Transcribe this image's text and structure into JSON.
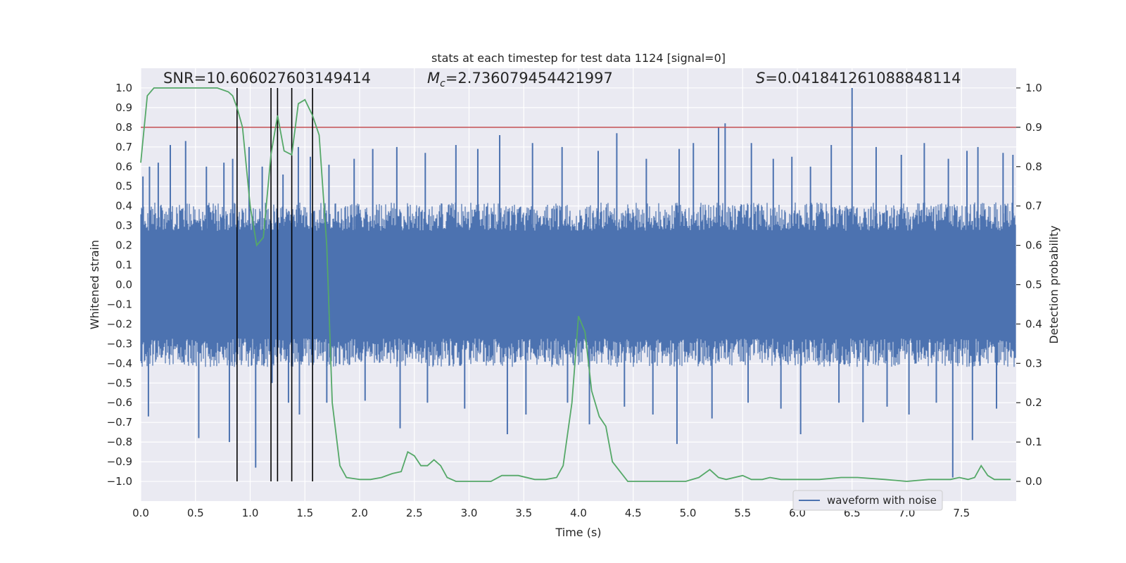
{
  "chart_data": {
    "type": "line",
    "title": "stats at each timestep for test data 1124 [signal=0]",
    "xlabel": "Time (s)",
    "ylabel": "Whitened strain",
    "ylabel_right": "Detection probability",
    "xlim": [
      0.0,
      8.0
    ],
    "ylim": [
      -1.1,
      1.1
    ],
    "ylim_right": [
      -0.05,
      1.05
    ],
    "x_ticks": [
      0.0,
      0.5,
      1.0,
      1.5,
      2.0,
      2.5,
      3.0,
      3.5,
      4.0,
      4.5,
      5.0,
      5.5,
      6.0,
      6.5,
      7.0,
      7.5
    ],
    "x_tick_labels": [
      "0.0",
      "0.5",
      "1.0",
      "1.5",
      "2.0",
      "2.5",
      "3.0",
      "3.5",
      "4.0",
      "4.5",
      "5.0",
      "5.5",
      "6.0",
      "6.5",
      "7.0",
      "7.5"
    ],
    "y_ticks": [
      1.0,
      0.9,
      0.8,
      0.7,
      0.6,
      0.5,
      0.4,
      0.3,
      0.2,
      0.1,
      0.0,
      -0.1,
      -0.2,
      -0.3,
      -0.4,
      -0.5,
      -0.6,
      -0.7,
      -0.8,
      -0.9,
      -1.0
    ],
    "y_tick_labels": [
      "1.0",
      "0.9",
      "0.8",
      "0.7",
      "0.6",
      "0.5",
      "0.4",
      "0.3",
      "0.2",
      "0.1",
      "0.0",
      "−0.1",
      "−0.2",
      "−0.3",
      "−0.4",
      "−0.5",
      "−0.6",
      "−0.7",
      "−0.8",
      "−0.9",
      "−1.0"
    ],
    "y_right_ticks": [
      1.0,
      0.9,
      0.8,
      0.7,
      0.6,
      0.5,
      0.4,
      0.3,
      0.2,
      0.1,
      0.0
    ],
    "y_right_tick_labels": [
      "1.0",
      "0.9",
      "0.8",
      "0.7",
      "0.6",
      "0.5",
      "0.4",
      "0.3",
      "0.2",
      "0.1",
      "0.0"
    ],
    "grid": true,
    "annotations": {
      "snr": "SNR=10.606027603149414",
      "mc_symbol": "M",
      "mc_subscript": "c",
      "mc_value": "=2.736079454421997",
      "s_symbol": "S",
      "s_value": "=0.041841261088848114"
    },
    "threshold": {
      "y": 0.8,
      "color": "#c44e52"
    },
    "vertical_lines": {
      "x": [
        0.88,
        1.19,
        1.25,
        1.38,
        1.57
      ],
      "y_range": [
        -1.0,
        1.0
      ],
      "color": "#000000"
    },
    "waveform": {
      "name": "waveform with noise",
      "color": "#4c72b0",
      "core_amplitude": 0.38,
      "spikes": [
        {
          "x": 0.02,
          "y": 0.55
        },
        {
          "x": 0.08,
          "y": 0.6
        },
        {
          "x": 0.16,
          "y": 0.62
        },
        {
          "x": 0.27,
          "y": 0.71
        },
        {
          "x": 0.41,
          "y": 0.73
        },
        {
          "x": 0.6,
          "y": 0.6
        },
        {
          "x": 0.76,
          "y": 0.62
        },
        {
          "x": 0.84,
          "y": 0.64
        },
        {
          "x": 0.99,
          "y": 0.7
        },
        {
          "x": 1.11,
          "y": 0.6
        },
        {
          "x": 1.3,
          "y": 0.56
        },
        {
          "x": 1.44,
          "y": 0.7
        },
        {
          "x": 1.55,
          "y": 0.65
        },
        {
          "x": 1.72,
          "y": 0.61
        },
        {
          "x": 1.95,
          "y": 0.64
        },
        {
          "x": 2.12,
          "y": 0.69
        },
        {
          "x": 2.34,
          "y": 0.7
        },
        {
          "x": 2.6,
          "y": 0.67
        },
        {
          "x": 2.88,
          "y": 0.71
        },
        {
          "x": 3.08,
          "y": 0.69
        },
        {
          "x": 3.28,
          "y": 0.76
        },
        {
          "x": 3.58,
          "y": 0.72
        },
        {
          "x": 3.85,
          "y": 0.7
        },
        {
          "x": 4.18,
          "y": 0.68
        },
        {
          "x": 4.35,
          "y": 0.77
        },
        {
          "x": 4.62,
          "y": 0.64
        },
        {
          "x": 4.92,
          "y": 0.69
        },
        {
          "x": 5.05,
          "y": 0.72
        },
        {
          "x": 5.28,
          "y": 0.8
        },
        {
          "x": 5.34,
          "y": 0.82
        },
        {
          "x": 5.58,
          "y": 0.72
        },
        {
          "x": 5.78,
          "y": 0.64
        },
        {
          "x": 5.95,
          "y": 0.65
        },
        {
          "x": 6.12,
          "y": 0.6
        },
        {
          "x": 6.31,
          "y": 0.71
        },
        {
          "x": 6.5,
          "y": 1.0
        },
        {
          "x": 6.72,
          "y": 0.7
        },
        {
          "x": 6.95,
          "y": 0.66
        },
        {
          "x": 7.16,
          "y": 0.72
        },
        {
          "x": 7.38,
          "y": 0.64
        },
        {
          "x": 7.55,
          "y": 0.68
        },
        {
          "x": 7.65,
          "y": 0.7
        },
        {
          "x": 7.88,
          "y": 0.67
        },
        {
          "x": 7.97,
          "y": 0.66
        },
        {
          "x": 0.07,
          "y": -0.67
        },
        {
          "x": 0.53,
          "y": -0.78
        },
        {
          "x": 0.81,
          "y": -0.8
        },
        {
          "x": 1.05,
          "y": -0.93
        },
        {
          "x": 1.2,
          "y": -0.5
        },
        {
          "x": 1.35,
          "y": -0.6
        },
        {
          "x": 1.45,
          "y": -0.66
        },
        {
          "x": 1.7,
          "y": -0.6
        },
        {
          "x": 2.05,
          "y": -0.59
        },
        {
          "x": 2.37,
          "y": -0.73
        },
        {
          "x": 2.62,
          "y": -0.6
        },
        {
          "x": 2.96,
          "y": -0.63
        },
        {
          "x": 3.35,
          "y": -0.76
        },
        {
          "x": 3.52,
          "y": -0.66
        },
        {
          "x": 3.9,
          "y": -0.6
        },
        {
          "x": 4.1,
          "y": -0.71
        },
        {
          "x": 4.42,
          "y": -0.62
        },
        {
          "x": 4.68,
          "y": -0.66
        },
        {
          "x": 4.9,
          "y": -0.81
        },
        {
          "x": 5.22,
          "y": -0.68
        },
        {
          "x": 5.55,
          "y": -0.6
        },
        {
          "x": 5.85,
          "y": -0.63
        },
        {
          "x": 6.03,
          "y": -0.76
        },
        {
          "x": 6.38,
          "y": -0.6
        },
        {
          "x": 6.6,
          "y": -0.7
        },
        {
          "x": 6.82,
          "y": -0.62
        },
        {
          "x": 7.02,
          "y": -0.66
        },
        {
          "x": 7.27,
          "y": -0.6
        },
        {
          "x": 7.42,
          "y": -0.98
        },
        {
          "x": 7.6,
          "y": -0.79
        },
        {
          "x": 7.82,
          "y": -0.63
        }
      ]
    },
    "probability": {
      "color": "#55a868",
      "x": [
        0.0,
        0.06,
        0.12,
        0.2,
        0.4,
        0.6,
        0.7,
        0.8,
        0.84,
        0.88,
        0.93,
        1.0,
        1.06,
        1.12,
        1.19,
        1.25,
        1.31,
        1.38,
        1.44,
        1.5,
        1.57,
        1.63,
        1.7,
        1.75,
        1.82,
        1.88,
        2.0,
        2.1,
        2.2,
        2.3,
        2.38,
        2.44,
        2.5,
        2.56,
        2.62,
        2.68,
        2.74,
        2.8,
        2.88,
        3.0,
        3.2,
        3.3,
        3.45,
        3.6,
        3.7,
        3.8,
        3.86,
        3.94,
        4.0,
        4.06,
        4.12,
        4.19,
        4.25,
        4.31,
        4.38,
        4.45,
        4.6,
        4.8,
        4.98,
        5.1,
        5.2,
        5.28,
        5.35,
        5.5,
        5.58,
        5.68,
        5.75,
        5.85,
        6.0,
        6.2,
        6.4,
        6.55,
        6.8,
        7.0,
        7.2,
        7.4,
        7.48,
        7.56,
        7.62,
        7.68,
        7.74,
        7.8,
        7.88,
        7.95
      ],
      "y": [
        0.81,
        0.98,
        1.0,
        1.0,
        1.0,
        1.0,
        1.0,
        0.99,
        0.98,
        0.95,
        0.9,
        0.7,
        0.6,
        0.62,
        0.83,
        0.93,
        0.84,
        0.83,
        0.96,
        0.97,
        0.93,
        0.88,
        0.6,
        0.2,
        0.04,
        0.01,
        0.005,
        0.005,
        0.01,
        0.02,
        0.025,
        0.075,
        0.065,
        0.04,
        0.04,
        0.055,
        0.04,
        0.01,
        0.0,
        0.0,
        0.0,
        0.015,
        0.015,
        0.005,
        0.005,
        0.01,
        0.04,
        0.2,
        0.42,
        0.38,
        0.23,
        0.165,
        0.14,
        0.05,
        0.025,
        0.0,
        0.0,
        0.0,
        0.0,
        0.01,
        0.03,
        0.01,
        0.005,
        0.015,
        0.005,
        0.005,
        0.01,
        0.005,
        0.005,
        0.005,
        0.01,
        0.01,
        0.005,
        0.0,
        0.005,
        0.005,
        0.01,
        0.005,
        0.01,
        0.04,
        0.015,
        0.005,
        0.005,
        0.005
      ]
    },
    "legend": {
      "label": "waveform with noise",
      "placement": "lower-right"
    }
  }
}
